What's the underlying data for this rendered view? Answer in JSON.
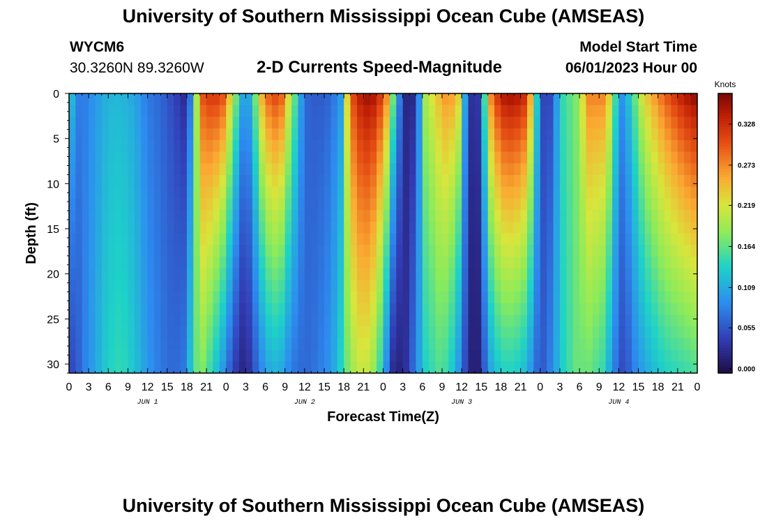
{
  "header": {
    "title_top": "University of Southern Mississippi Ocean Cube (AMSEAS)",
    "title_bottom": "University of Southern Mississippi Ocean Cube (AMSEAS)",
    "station_id": "WYCM6",
    "station_coords": "30.3260N  89.3260W",
    "plot_title": "2-D Currents Speed-Magnitude",
    "model_start_label": "Model Start Time",
    "model_start_value": "06/01/2023 Hour 00"
  },
  "chart_data": {
    "type": "heatmap",
    "title": "2-D Currents Speed-Magnitude",
    "xlabel": "Forecast Time(Z)",
    "ylabel": "Depth (ft)",
    "x_range_hours": [
      0,
      96
    ],
    "x_ticks": [
      "0",
      "3",
      "6",
      "9",
      "12",
      "15",
      "18",
      "21",
      "0",
      "3",
      "6",
      "9",
      "12",
      "15",
      "18",
      "21",
      "0",
      "3",
      "6",
      "9",
      "12",
      "15",
      "18",
      "21",
      "0",
      "3",
      "6",
      "9",
      "12",
      "15",
      "18",
      "21",
      "0"
    ],
    "day_labels": [
      "JUN 1",
      "JUN 2",
      "JUN 3",
      "JUN 4"
    ],
    "y_range_ft": [
      0,
      31
    ],
    "y_ticks": [
      "0",
      "5",
      "10",
      "15",
      "20",
      "25",
      "30"
    ],
    "colorbar": {
      "label": "Knots",
      "range": [
        0.0,
        0.369
      ],
      "ticks": [
        "0.328",
        "0.273",
        "0.219",
        "0.164",
        "0.109",
        "0.055",
        "0.000"
      ]
    },
    "columns": [
      {
        "hour": 0.0,
        "surface": 0.16,
        "bottom": 0.05
      },
      {
        "hour": 1.0,
        "surface": 0.09,
        "bottom": 0.055
      },
      {
        "hour": 2.0,
        "surface": 0.08,
        "bottom": 0.08
      },
      {
        "hour": 4.0,
        "surface": 0.1,
        "bottom": 0.11
      },
      {
        "hour": 6.0,
        "surface": 0.12,
        "bottom": 0.14
      },
      {
        "hour": 8.0,
        "surface": 0.12,
        "bottom": 0.15
      },
      {
        "hour": 10.0,
        "surface": 0.11,
        "bottom": 0.13
      },
      {
        "hour": 12.0,
        "surface": 0.08,
        "bottom": 0.1
      },
      {
        "hour": 14.0,
        "surface": 0.07,
        "bottom": 0.08
      },
      {
        "hour": 16.0,
        "surface": 0.05,
        "bottom": 0.07
      },
      {
        "hour": 17.5,
        "surface": 0.03,
        "bottom": 0.08
      },
      {
        "hour": 19.0,
        "surface": 0.1,
        "bottom": 0.15
      },
      {
        "hour": 20.0,
        "surface": 0.3,
        "bottom": 0.19
      },
      {
        "hour": 22.0,
        "surface": 0.33,
        "bottom": 0.14
      },
      {
        "hour": 23.5,
        "surface": 0.31,
        "bottom": 0.1
      },
      {
        "hour": 25.0,
        "surface": 0.22,
        "bottom": 0.05
      },
      {
        "hour": 26.0,
        "surface": 0.14,
        "bottom": 0.03
      },
      {
        "hour": 27.0,
        "surface": 0.09,
        "bottom": 0.02
      },
      {
        "hour": 28.0,
        "surface": 0.14,
        "bottom": 0.05
      },
      {
        "hour": 29.5,
        "surface": 0.26,
        "bottom": 0.09
      },
      {
        "hour": 31.0,
        "surface": 0.32,
        "bottom": 0.12
      },
      {
        "hour": 32.5,
        "surface": 0.3,
        "bottom": 0.11
      },
      {
        "hour": 34.0,
        "surface": 0.2,
        "bottom": 0.08
      },
      {
        "hour": 36.0,
        "surface": 0.07,
        "bottom": 0.07
      },
      {
        "hour": 38.0,
        "surface": 0.06,
        "bottom": 0.08
      },
      {
        "hour": 40.0,
        "surface": 0.07,
        "bottom": 0.1
      },
      {
        "hour": 41.5,
        "surface": 0.1,
        "bottom": 0.14
      },
      {
        "hour": 43.0,
        "surface": 0.3,
        "bottom": 0.19
      },
      {
        "hour": 45.0,
        "surface": 0.36,
        "bottom": 0.22
      },
      {
        "hour": 47.0,
        "surface": 0.35,
        "bottom": 0.18
      },
      {
        "hour": 48.5,
        "surface": 0.28,
        "bottom": 0.09
      },
      {
        "hour": 49.5,
        "surface": 0.18,
        "bottom": 0.03
      },
      {
        "hour": 51.0,
        "surface": 0.04,
        "bottom": 0.02
      },
      {
        "hour": 52.0,
        "surface": 0.01,
        "bottom": 0.05
      },
      {
        "hour": 53.0,
        "surface": 0.04,
        "bottom": 0.09
      },
      {
        "hour": 54.5,
        "surface": 0.2,
        "bottom": 0.14
      },
      {
        "hour": 56.5,
        "surface": 0.25,
        "bottom": 0.16
      },
      {
        "hour": 58.0,
        "surface": 0.28,
        "bottom": 0.15
      },
      {
        "hour": 59.5,
        "surface": 0.24,
        "bottom": 0.1
      },
      {
        "hour": 61.0,
        "surface": 0.05,
        "bottom": 0.03
      },
      {
        "hour": 62.0,
        "surface": 0.02,
        "bottom": 0.01
      },
      {
        "hour": 63.0,
        "surface": 0.06,
        "bottom": 0.03
      },
      {
        "hour": 64.0,
        "surface": 0.26,
        "bottom": 0.1
      },
      {
        "hour": 66.0,
        "surface": 0.35,
        "bottom": 0.14
      },
      {
        "hour": 68.0,
        "surface": 0.36,
        "bottom": 0.14
      },
      {
        "hour": 70.0,
        "surface": 0.33,
        "bottom": 0.12
      },
      {
        "hour": 71.0,
        "surface": 0.2,
        "bottom": 0.08
      },
      {
        "hour": 72.0,
        "surface": 0.08,
        "bottom": 0.06
      },
      {
        "hour": 73.0,
        "surface": 0.02,
        "bottom": 0.07
      },
      {
        "hour": 74.0,
        "surface": 0.08,
        "bottom": 0.1
      },
      {
        "hour": 75.5,
        "surface": 0.15,
        "bottom": 0.14
      },
      {
        "hour": 77.5,
        "surface": 0.18,
        "bottom": 0.17
      },
      {
        "hour": 79.5,
        "surface": 0.28,
        "bottom": 0.17
      },
      {
        "hour": 81.5,
        "surface": 0.28,
        "bottom": 0.15
      },
      {
        "hour": 83.0,
        "surface": 0.22,
        "bottom": 0.1
      },
      {
        "hour": 84.0,
        "surface": 0.09,
        "bottom": 0.06
      },
      {
        "hour": 85.0,
        "surface": 0.11,
        "bottom": 0.05
      },
      {
        "hour": 86.0,
        "surface": 0.15,
        "bottom": 0.08
      },
      {
        "hour": 88.0,
        "surface": 0.24,
        "bottom": 0.11
      },
      {
        "hour": 91.0,
        "surface": 0.3,
        "bottom": 0.14
      },
      {
        "hour": 94.0,
        "surface": 0.35,
        "bottom": 0.15
      },
      {
        "hour": 96.0,
        "surface": 0.37,
        "bottom": 0.16
      }
    ]
  }
}
